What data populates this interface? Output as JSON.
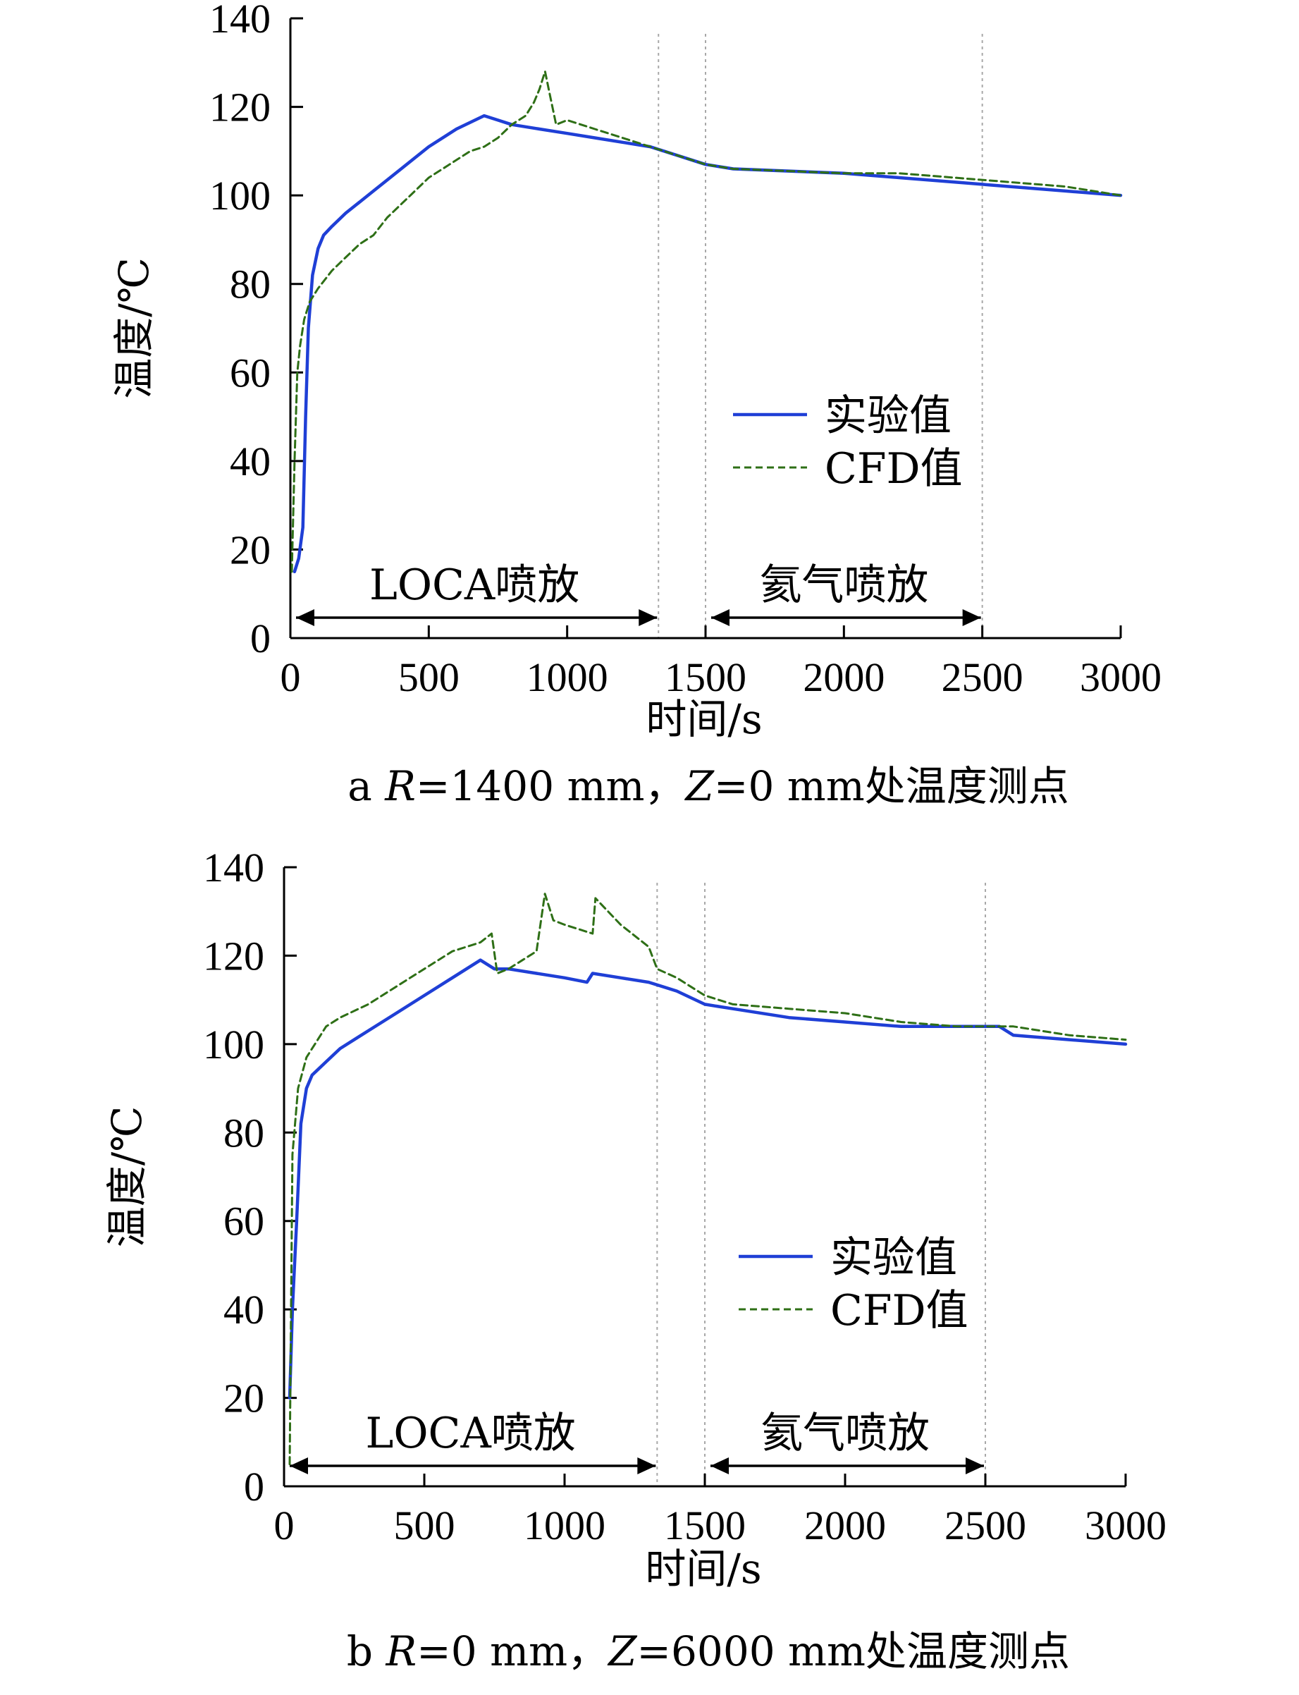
{
  "colors": {
    "experiment": "#1f3fd6",
    "cfd": "#2e6f16",
    "axis": "#000000",
    "divider": "#a8a8a8"
  },
  "chart_data": [
    {
      "type": "line",
      "caption": {
        "prefix": "a ",
        "r_var": "R",
        "r_text": "=1400 mm，",
        "z_var": "Z",
        "z_text": "=0 mm处温度测点"
      },
      "xlabel": "时间/s",
      "ylabel": "温度/℃",
      "xlim": [
        0,
        3000
      ],
      "ylim": [
        0,
        140
      ],
      "x_ticks": [
        0,
        500,
        1000,
        1500,
        2000,
        2500,
        3000
      ],
      "y_ticks": [
        0,
        20,
        40,
        60,
        80,
        100,
        120,
        140
      ],
      "legend": {
        "position": "middle-right",
        "entries": [
          "实验值",
          "CFD值"
        ]
      },
      "dividers": [
        1330,
        1500,
        2500
      ],
      "periods": [
        {
          "label": "LOCA喷放",
          "start": 0,
          "end": 1330
        },
        {
          "label": "氦气喷放",
          "start": 1500,
          "end": 2500
        }
      ],
      "series": [
        {
          "name": "实验值",
          "style": "solid",
          "x": [
            15,
            30,
            45,
            55,
            65,
            80,
            100,
            120,
            150,
            200,
            300,
            400,
            500,
            600,
            700,
            750,
            800,
            900,
            1000,
            1100,
            1200,
            1300,
            1400,
            1500,
            1600,
            1800,
            2000,
            2200,
            2400,
            2600,
            2800,
            3000
          ],
          "y": [
            15,
            18,
            25,
            50,
            70,
            82,
            88,
            91,
            93,
            96,
            101,
            106,
            111,
            115,
            118,
            117,
            116,
            115,
            114,
            113,
            112,
            111,
            109,
            107,
            106,
            105.5,
            105,
            104,
            103,
            102,
            101,
            100
          ]
        },
        {
          "name": "CFD值",
          "style": "dashed",
          "x": [
            5,
            15,
            25,
            35,
            50,
            70,
            100,
            150,
            200,
            250,
            300,
            350,
            400,
            450,
            500,
            550,
            600,
            650,
            700,
            750,
            800,
            850,
            880,
            900,
            920,
            940,
            960,
            1000,
            1100,
            1200,
            1300,
            1400,
            1500,
            1600,
            1800,
            2000,
            2200,
            2400,
            2600,
            2800,
            3000
          ],
          "y": [
            15,
            40,
            60,
            66,
            72,
            76,
            79,
            83,
            86,
            89,
            91,
            95,
            98,
            101,
            104,
            106,
            108,
            110,
            111,
            113,
            116,
            118,
            121,
            124,
            128,
            122,
            116,
            117,
            115,
            113,
            111,
            109,
            107,
            106,
            105.5,
            105,
            105,
            104,
            103,
            102,
            100
          ]
        }
      ]
    },
    {
      "type": "line",
      "caption": {
        "prefix": "b ",
        "r_var": "R",
        "r_text": "=0 mm，",
        "z_var": "Z",
        "z_text": "=6000 mm处温度测点"
      },
      "xlabel": "时间/s",
      "ylabel": "温度/℃",
      "xlim": [
        0,
        3000
      ],
      "ylim": [
        0,
        140
      ],
      "x_ticks": [
        0,
        500,
        1000,
        1500,
        2000,
        2500,
        3000
      ],
      "y_ticks": [
        0,
        20,
        40,
        60,
        80,
        100,
        120,
        140
      ],
      "legend": {
        "position": "middle-right",
        "entries": [
          "实验值",
          "CFD值"
        ]
      },
      "dividers": [
        1330,
        1500,
        2500
      ],
      "periods": [
        {
          "label": "LOCA喷放",
          "start": 0,
          "end": 1330
        },
        {
          "label": "氦气喷放",
          "start": 1500,
          "end": 2500
        }
      ],
      "series": [
        {
          "name": "实验值",
          "style": "solid",
          "x": [
            20,
            30,
            45,
            60,
            80,
            100,
            150,
            200,
            300,
            400,
            500,
            600,
            700,
            750,
            800,
            900,
            1000,
            1080,
            1100,
            1200,
            1300,
            1400,
            1500,
            1600,
            1800,
            2000,
            2200,
            2400,
            2550,
            2600,
            2800,
            3000
          ],
          "y": [
            20,
            40,
            60,
            82,
            90,
            93,
            96,
            99,
            103,
            107,
            111,
            115,
            119,
            117,
            117,
            116,
            115,
            114,
            116,
            115,
            114,
            112,
            109,
            108,
            106,
            105,
            104,
            104,
            104,
            102,
            101,
            100
          ]
        },
        {
          "name": "CFD值",
          "style": "dashed",
          "x": [
            20,
            30,
            50,
            80,
            120,
            150,
            200,
            300,
            400,
            500,
            600,
            700,
            740,
            760,
            800,
            850,
            900,
            930,
            960,
            1000,
            1100,
            1110,
            1200,
            1300,
            1330,
            1400,
            1500,
            1600,
            1800,
            2000,
            2200,
            2400,
            2600,
            2800,
            3000
          ],
          "y": [
            5,
            75,
            90,
            97,
            101,
            104,
            106,
            109,
            113,
            117,
            121,
            123,
            125,
            116,
            117,
            119,
            121,
            134,
            128,
            127,
            125,
            133,
            127,
            122,
            117,
            115,
            111,
            109,
            108,
            107,
            105,
            104,
            104,
            102,
            101
          ]
        }
      ]
    }
  ]
}
